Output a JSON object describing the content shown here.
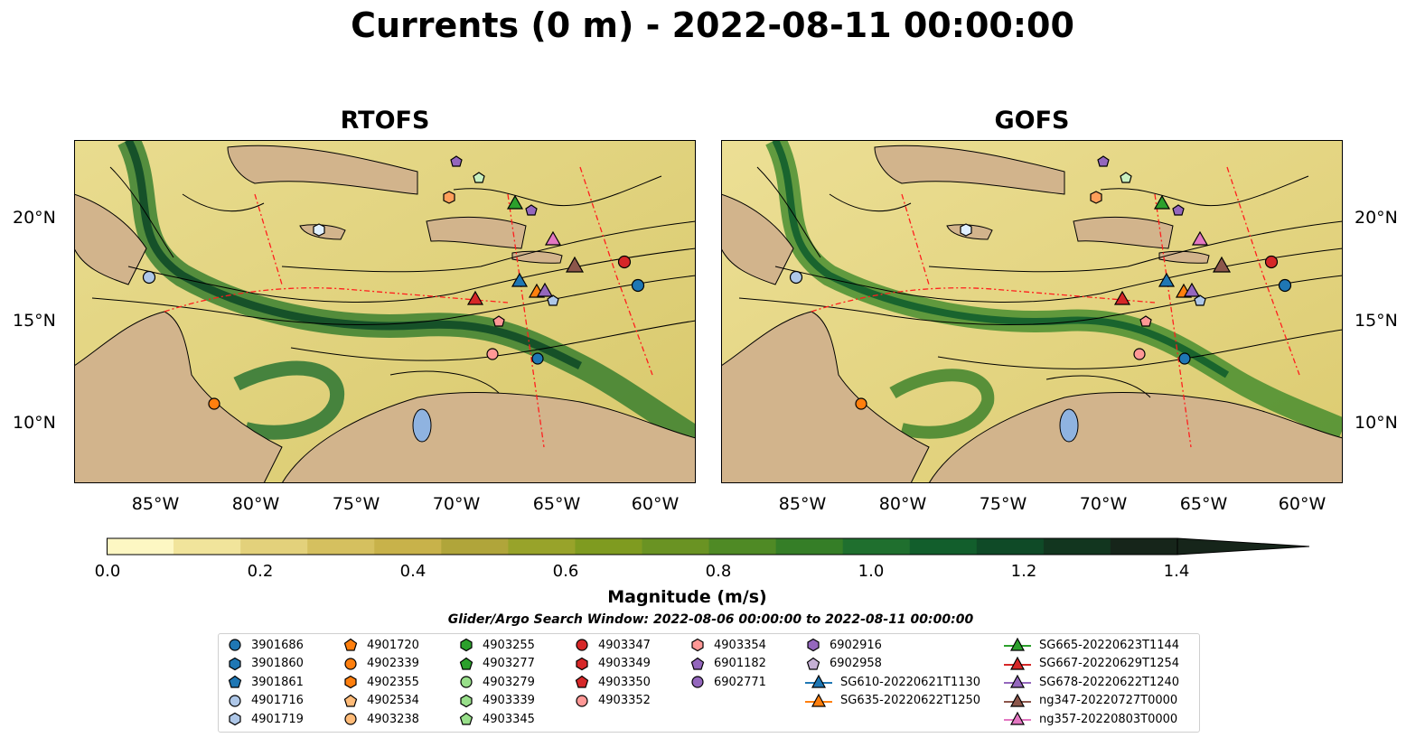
{
  "title": "Currents (0 m) - 2022-08-11 00:00:00",
  "panels": [
    {
      "title": "RTOFS"
    },
    {
      "title": "GOFS"
    }
  ],
  "axes": {
    "lat_ticks": [
      "20°N",
      "15°N",
      "10°N"
    ],
    "lon_ticks": [
      "85°W",
      "80°W",
      "75°W",
      "70°W",
      "65°W",
      "60°W"
    ]
  },
  "colorbar": {
    "label": "Magnitude (m/s)",
    "ticks": [
      "0.0",
      "0.2",
      "0.4",
      "0.6",
      "0.8",
      "1.0",
      "1.2",
      "1.4"
    ],
    "range": [
      0,
      1.6
    ],
    "extend": "max",
    "colors": [
      "#fdf7c3",
      "#f1e49b",
      "#e3d17b",
      "#d5c05f",
      "#c8b24a",
      "#b0a53a",
      "#98a32a",
      "#7f9b20",
      "#6a9323",
      "#4f8a25",
      "#357e27",
      "#1f6f2e",
      "#125e2c",
      "#0f4a27",
      "#12361f",
      "#16251a"
    ]
  },
  "search_window": "Glider/Argo Search Window: 2022-08-06 00:00:00 to 2022-08-11 00:00:00",
  "legend": [
    {
      "label": "3901686",
      "marker": "circle",
      "color": "#1f77b4"
    },
    {
      "label": "3901860",
      "marker": "hexagon",
      "color": "#1f77b4"
    },
    {
      "label": "3901861",
      "marker": "pentagon",
      "color": "#1f77b4"
    },
    {
      "label": "4901716",
      "marker": "circle",
      "color": "#aec7e8"
    },
    {
      "label": "4901719",
      "marker": "hexagon",
      "color": "#aec7e8"
    },
    {
      "label": "4901720",
      "marker": "pentagon",
      "color": "#ff7f0e"
    },
    {
      "label": "4902339",
      "marker": "circle",
      "color": "#ff7f0e"
    },
    {
      "label": "4902355",
      "marker": "hexagon",
      "color": "#ff7f0e"
    },
    {
      "label": "4902534",
      "marker": "pentagon",
      "color": "#ffbb78"
    },
    {
      "label": "4903238",
      "marker": "circle",
      "color": "#ffbb78"
    },
    {
      "label": "4903255",
      "marker": "hexagon",
      "color": "#2ca02c"
    },
    {
      "label": "4903277",
      "marker": "pentagon",
      "color": "#2ca02c"
    },
    {
      "label": "4903279",
      "marker": "circle",
      "color": "#98df8a"
    },
    {
      "label": "4903339",
      "marker": "hexagon",
      "color": "#98df8a"
    },
    {
      "label": "4903345",
      "marker": "pentagon",
      "color": "#98df8a"
    },
    {
      "label": "4903347",
      "marker": "circle",
      "color": "#d62728"
    },
    {
      "label": "4903349",
      "marker": "hexagon",
      "color": "#d62728"
    },
    {
      "label": "4903350",
      "marker": "pentagon",
      "color": "#d62728"
    },
    {
      "label": "4903352",
      "marker": "circle",
      "color": "#ff9896"
    },
    {
      "label": "4903354",
      "marker": "hexagon",
      "color": "#ff9896"
    },
    {
      "label": "6901182",
      "marker": "pentagon",
      "color": "#9467bd"
    },
    {
      "label": "6902771",
      "marker": "circle",
      "color": "#9467bd"
    },
    {
      "label": "6902916",
      "marker": "hexagon",
      "color": "#9467bd"
    },
    {
      "label": "6902958",
      "marker": "pentagon",
      "color": "#c5b0d5"
    },
    {
      "label": "SG610-20220621T1130",
      "marker": "triangle-line",
      "color": "#1f77b4"
    },
    {
      "label": "SG635-20220622T1250",
      "marker": "triangle-line",
      "color": "#ff7f0e"
    },
    {
      "label": "SG665-20220623T1144",
      "marker": "triangle-line",
      "color": "#2ca02c"
    },
    {
      "label": "SG667-20220629T1254",
      "marker": "triangle-line",
      "color": "#d62728"
    },
    {
      "label": "SG678-20220622T1240",
      "marker": "triangle-line",
      "color": "#9467bd"
    },
    {
      "label": "ng347-20220727T0000",
      "marker": "triangle-line",
      "color": "#8c564b"
    },
    {
      "label": "ng357-20220803T0000",
      "marker": "triangle-line",
      "color": "#e377c2"
    }
  ],
  "map_extent": {
    "lon": [
      -89,
      -58
    ],
    "lat": [
      7,
      24
    ]
  },
  "land_color": "#d2b48c"
}
